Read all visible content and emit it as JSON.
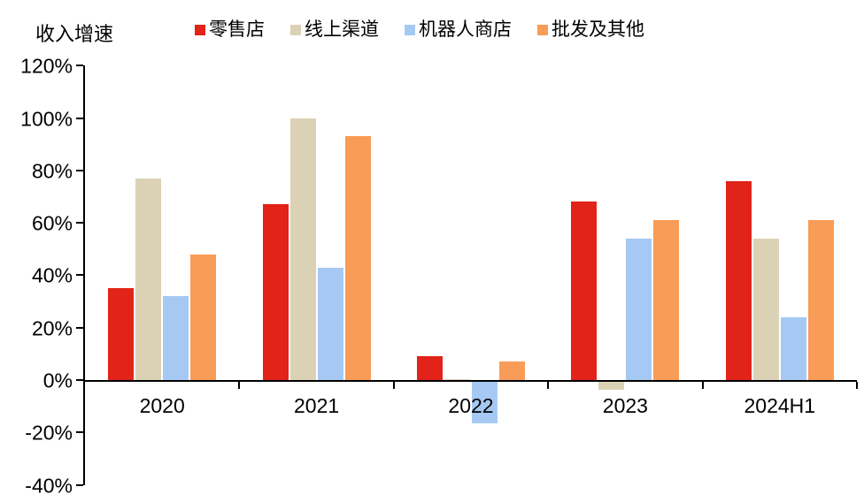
{
  "header": {
    "title": "收入增速"
  },
  "chart_data": {
    "type": "bar",
    "title": "收入增速",
    "categories": [
      "2020",
      "2021",
      "2022",
      "2023",
      "2024H1"
    ],
    "series": [
      {
        "name": "零售店",
        "color": "#e12319",
        "values": [
          35,
          67,
          9,
          68,
          76
        ]
      },
      {
        "name": "线上渠道",
        "color": "#dbd2b6",
        "values": [
          77,
          100,
          0.5,
          -3,
          54
        ]
      },
      {
        "name": "机器人商店",
        "color": "#a6c9f3",
        "values": [
          32,
          43,
          -16,
          54,
          24
        ]
      },
      {
        "name": "批发及其他",
        "color": "#f99c57",
        "values": [
          48,
          93,
          7,
          61,
          61
        ]
      }
    ],
    "y_ticks": [
      120,
      100,
      80,
      60,
      40,
      20,
      0,
      -20,
      -40
    ],
    "y_tick_suffix": "%",
    "ylim": [
      -40,
      120
    ],
    "grid": false,
    "legend_position": "top",
    "axis_color": "#000000"
  }
}
